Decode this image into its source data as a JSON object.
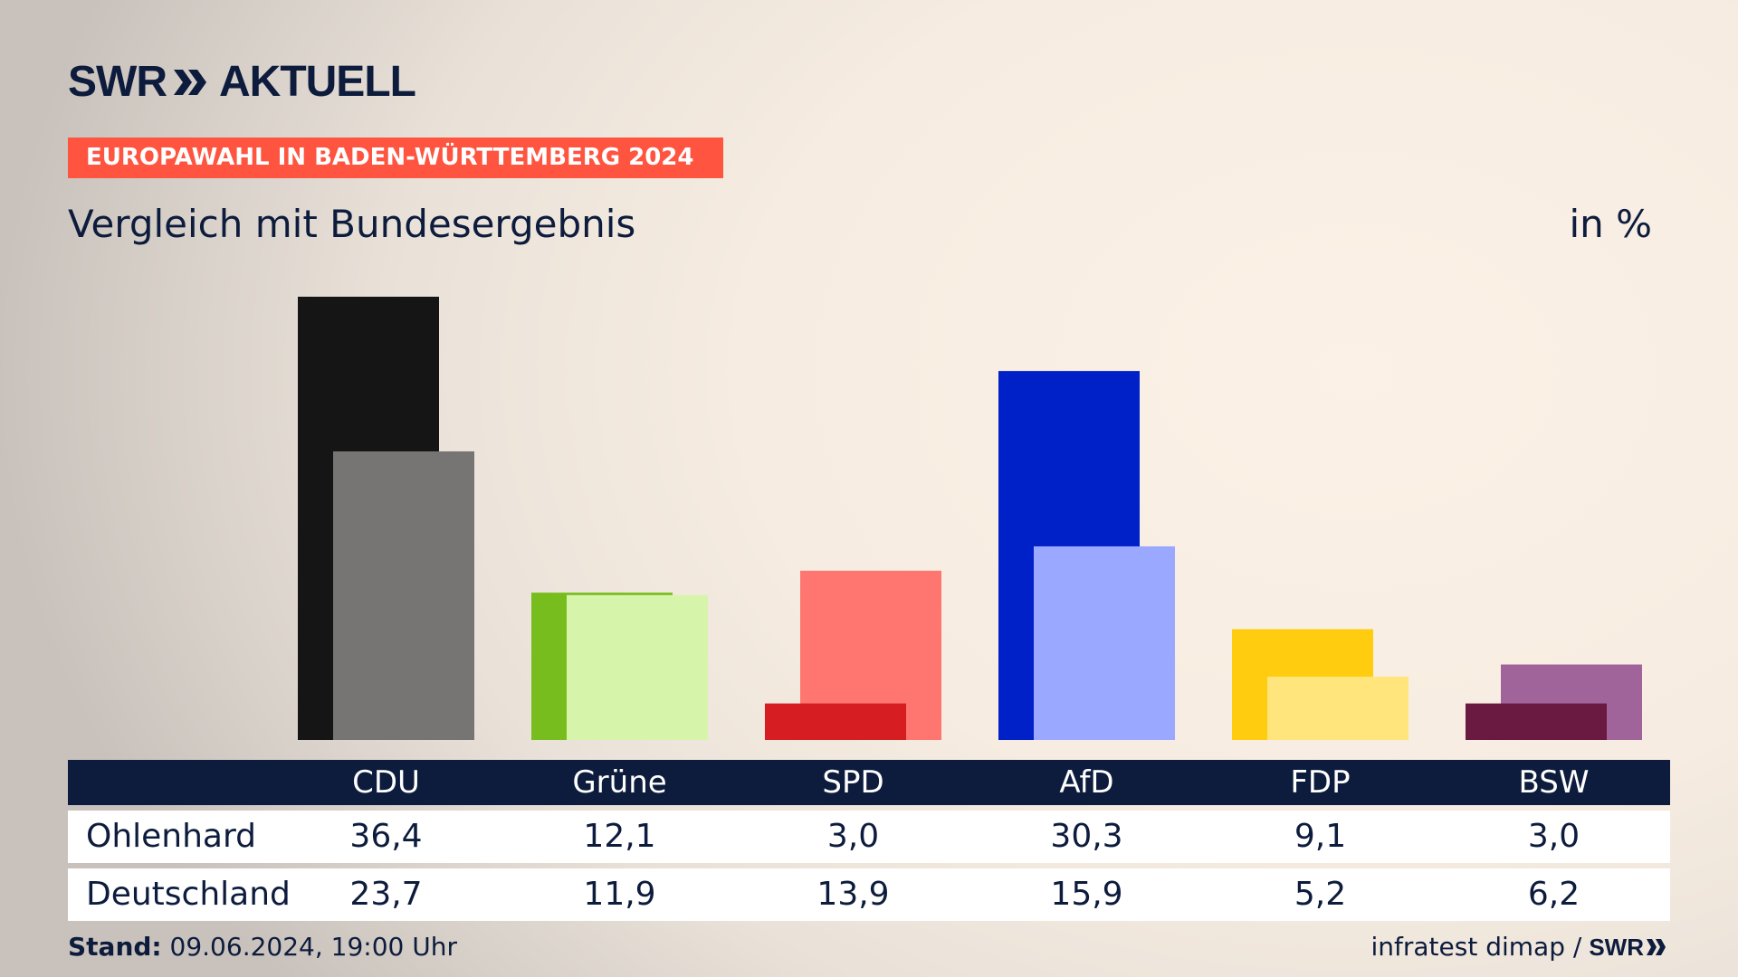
{
  "brand": {
    "logo_text": "SWR",
    "logo_suffix": "AKTUELL",
    "footer_logo": "SWR"
  },
  "topic_label": "EUROPAWAHL IN BADEN-WÜRTTEMBERG 2024",
  "headline": "Vergleich mit Bundesergebnis",
  "unit": "in %",
  "chart_data": {
    "type": "bar",
    "title": "Vergleich mit Bundesergebnis",
    "unit": "in %",
    "categories": [
      "CDU",
      "Grüne",
      "SPD",
      "AfD",
      "FDP",
      "BSW"
    ],
    "series": [
      {
        "name": "Ohlenhard",
        "values": [
          36.4,
          12.1,
          3.0,
          30.3,
          9.1,
          3.0
        ],
        "display": [
          "36,4",
          "12,1",
          "3,0",
          "30,3",
          "9,1",
          "3,0"
        ],
        "colors": [
          "#151515",
          "#78bd1e",
          "#d51d22",
          "#0021c8",
          "#ffcc10",
          "#6a1a40"
        ]
      },
      {
        "name": "Deutschland",
        "values": [
          23.7,
          11.9,
          13.9,
          15.9,
          5.2,
          6.2
        ],
        "display": [
          "23,7",
          "11,9",
          "13,9",
          "15,9",
          "5,2",
          "6,2"
        ],
        "colors": [
          "#777573",
          "#d6f5aa",
          "#ff7570",
          "#9aa8ff",
          "#ffe57b",
          "#a0649b"
        ]
      }
    ],
    "ylim": [
      0,
      36.4
    ],
    "grid": false,
    "legend": "table-below"
  },
  "footer": {
    "stand_label": "Stand:",
    "stand_value": "09.06.2024, 19:00 Uhr",
    "source": "infratest dimap /"
  }
}
